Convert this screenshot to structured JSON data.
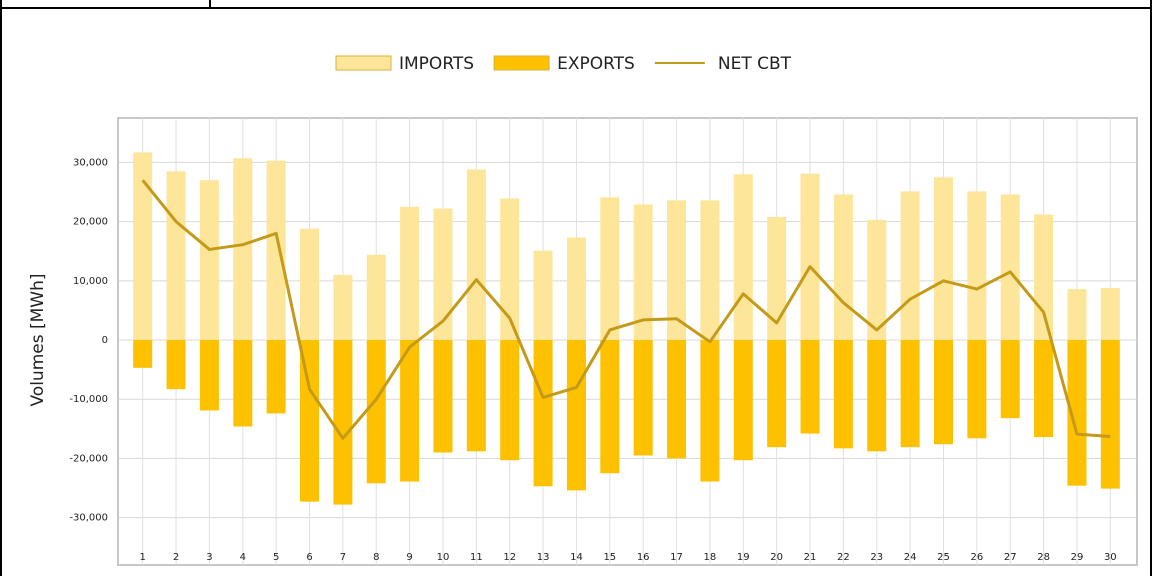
{
  "chart_data": {
    "type": "bar",
    "y_label": "Volumes [MWh]",
    "categories": [
      "1",
      "2",
      "3",
      "4",
      "5",
      "6",
      "7",
      "8",
      "9",
      "10",
      "11",
      "12",
      "13",
      "14",
      "15",
      "16",
      "17",
      "18",
      "19",
      "20",
      "21",
      "22",
      "23",
      "24",
      "25",
      "26",
      "27",
      "28",
      "29",
      "30"
    ],
    "series": [
      {
        "name": "IMPORTS",
        "type": "bar",
        "color": "#fde699",
        "values": [
          31700,
          28500,
          27000,
          30700,
          30300,
          18800,
          11000,
          14400,
          22500,
          22200,
          28800,
          23900,
          15100,
          17300,
          24100,
          22900,
          23600,
          23600,
          28000,
          20800,
          28100,
          24600,
          20300,
          25100,
          27500,
          25100,
          24600,
          21200,
          8600,
          8800
        ]
      },
      {
        "name": "EXPORTS",
        "type": "bar",
        "color": "#fdc100",
        "values": [
          -4700,
          -8300,
          -11900,
          -14600,
          -12400,
          -27300,
          -27800,
          -24200,
          -23900,
          -19000,
          -18800,
          -20300,
          -24700,
          -25400,
          -22500,
          -19500,
          -20000,
          -23900,
          -20300,
          -18100,
          -15800,
          -18300,
          -18800,
          -18100,
          -17600,
          -16600,
          -13200,
          -16400,
          -24600,
          -25100
        ]
      },
      {
        "name": "NET CBT",
        "type": "line",
        "color": "#c49a18",
        "values": [
          27000,
          20000,
          15300,
          16100,
          18000,
          -8300,
          -16600,
          -10000,
          -1200,
          3200,
          10200,
          3700,
          -9700,
          -8000,
          1700,
          3400,
          3600,
          -300,
          7800,
          2900,
          12400,
          6300,
          1700,
          6900,
          10000,
          8600,
          11500,
          4700,
          -15900,
          -16300
        ]
      }
    ],
    "ylim": [
      -38000,
      37500
    ],
    "yticks": [
      {
        "value": -30000,
        "label": "-30,000"
      },
      {
        "value": -20000,
        "label": "-20,000"
      },
      {
        "value": -10000,
        "label": "-10,000"
      },
      0,
      {
        "value": 10000,
        "label": "10,000"
      },
      {
        "value": 20000,
        "label": "20,000"
      },
      {
        "value": 30000,
        "label": "30,000"
      }
    ],
    "grid": true,
    "legend": "top"
  }
}
